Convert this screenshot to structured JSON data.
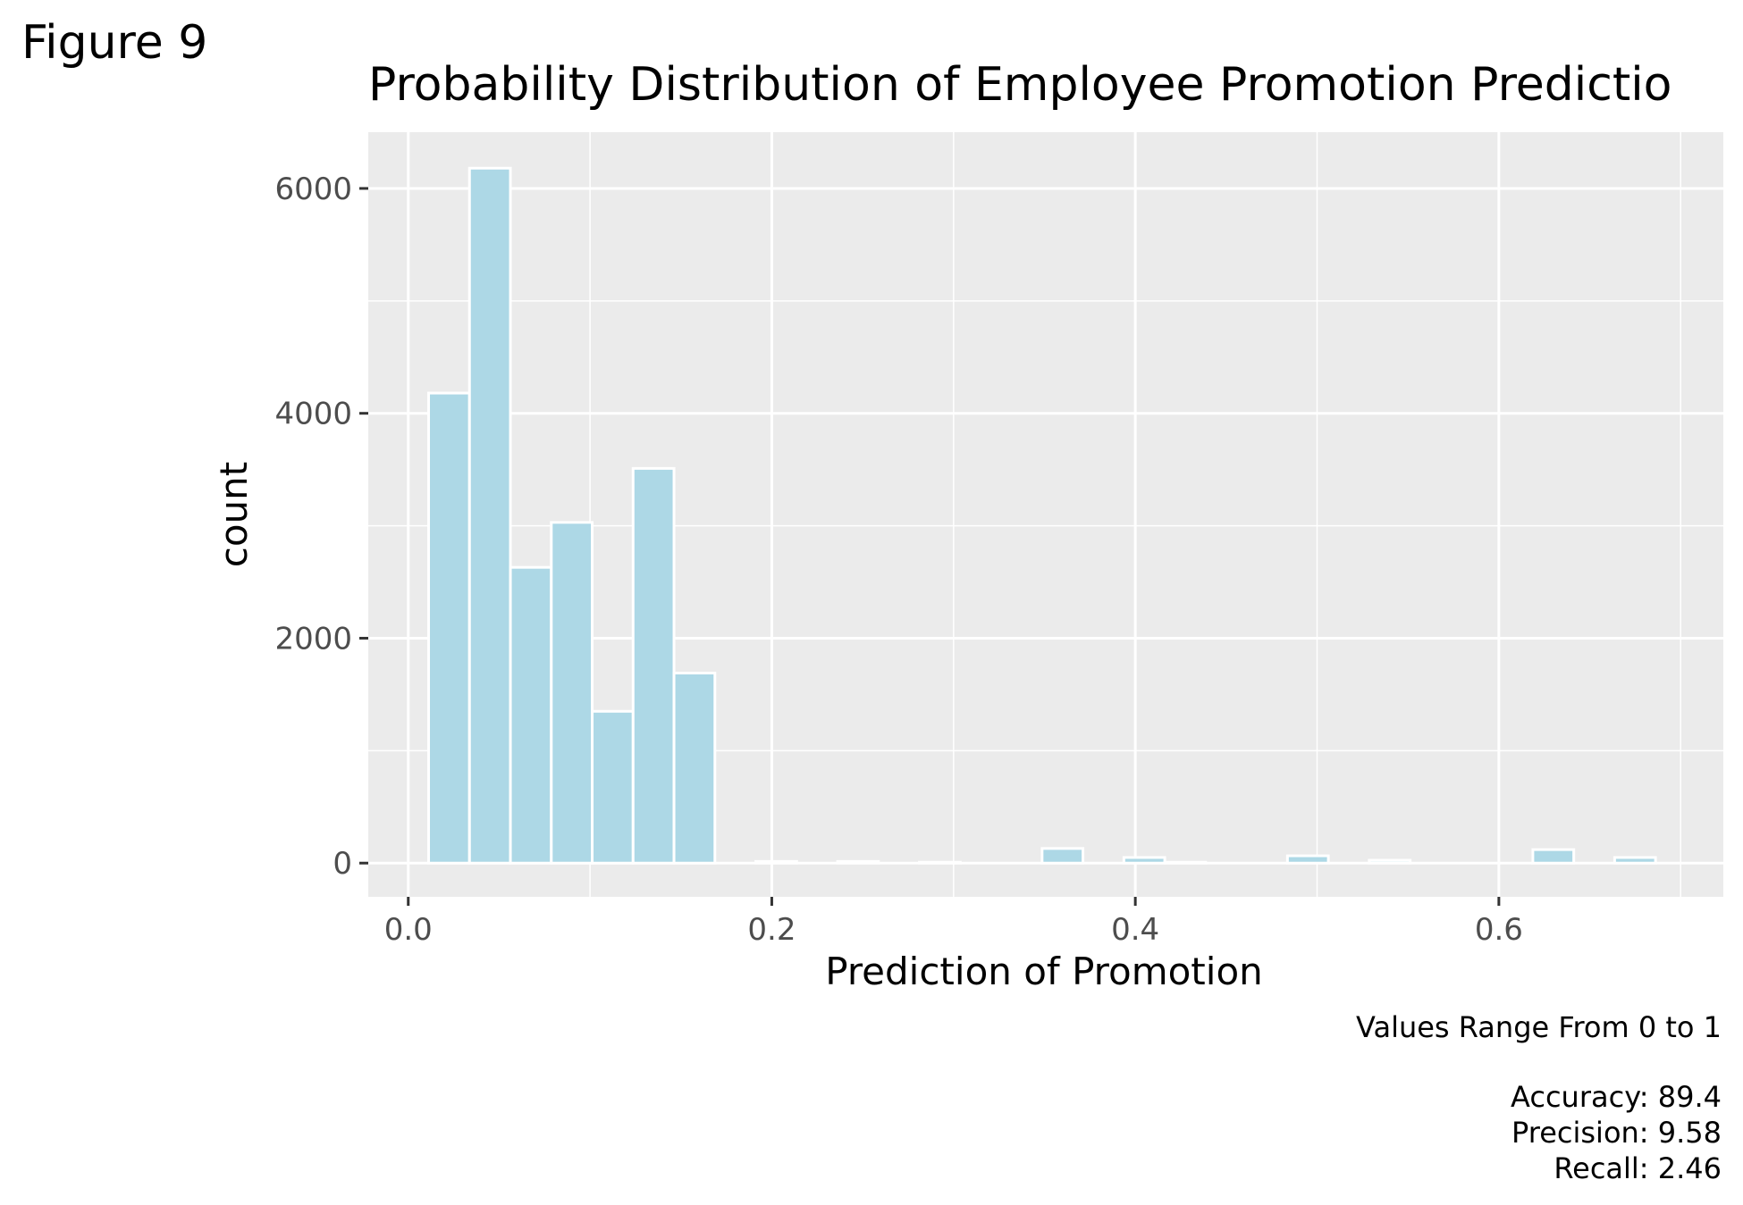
{
  "figure": {
    "label": "Figure 9"
  },
  "chart_data": {
    "type": "bar",
    "title": "Probability Distribution of Employee Promotion Predictio",
    "xlabel": "Prediction of Promotion",
    "ylabel": "count",
    "xlim": [
      -0.022,
      0.7235
    ],
    "ylim": [
      -300,
      6500
    ],
    "x_ticks": [
      0.0,
      0.2,
      0.4,
      0.6
    ],
    "x_tick_labels": [
      "0.0",
      "0.2",
      "0.4",
      "0.6"
    ],
    "y_ticks": [
      0,
      2000,
      4000,
      6000
    ],
    "y_tick_labels": [
      "0",
      "2000",
      "4000",
      "6000"
    ],
    "grid": true,
    "bin_width": 0.0225,
    "bins": [
      {
        "x0": 0.0112,
        "x1": 0.0337,
        "count": 4180
      },
      {
        "x0": 0.0337,
        "x1": 0.0562,
        "count": 6180
      },
      {
        "x0": 0.0562,
        "x1": 0.0787,
        "count": 2630
      },
      {
        "x0": 0.0787,
        "x1": 0.1012,
        "count": 3030
      },
      {
        "x0": 0.1012,
        "x1": 0.1237,
        "count": 1350
      },
      {
        "x0": 0.1237,
        "x1": 0.1462,
        "count": 3510
      },
      {
        "x0": 0.1462,
        "x1": 0.1687,
        "count": 1690
      },
      {
        "x0": 0.1912,
        "x1": 0.2137,
        "count": 15
      },
      {
        "x0": 0.2362,
        "x1": 0.2587,
        "count": 15
      },
      {
        "x0": 0.2812,
        "x1": 0.3037,
        "count": 8
      },
      {
        "x0": 0.3487,
        "x1": 0.3712,
        "count": 130
      },
      {
        "x0": 0.3937,
        "x1": 0.4162,
        "count": 50
      },
      {
        "x0": 0.4162,
        "x1": 0.4387,
        "count": 8
      },
      {
        "x0": 0.4837,
        "x1": 0.5062,
        "count": 65
      },
      {
        "x0": 0.5287,
        "x1": 0.5512,
        "count": 25
      },
      {
        "x0": 0.6187,
        "x1": 0.6412,
        "count": 120
      },
      {
        "x0": 0.6637,
        "x1": 0.6862,
        "count": 50
      }
    ],
    "colors": {
      "bar_fill": "#add8e6",
      "bar_stroke": "#ffffff",
      "panel_bg": "#ebebeb",
      "grid": "#ffffff",
      "tick_text": "#4d4d4d"
    }
  },
  "caption": {
    "subtitle": "Values Range From 0 to 1",
    "metrics": [
      "Accuracy: 89.4",
      "Precision: 9.58",
      "Recall: 2.46"
    ]
  }
}
